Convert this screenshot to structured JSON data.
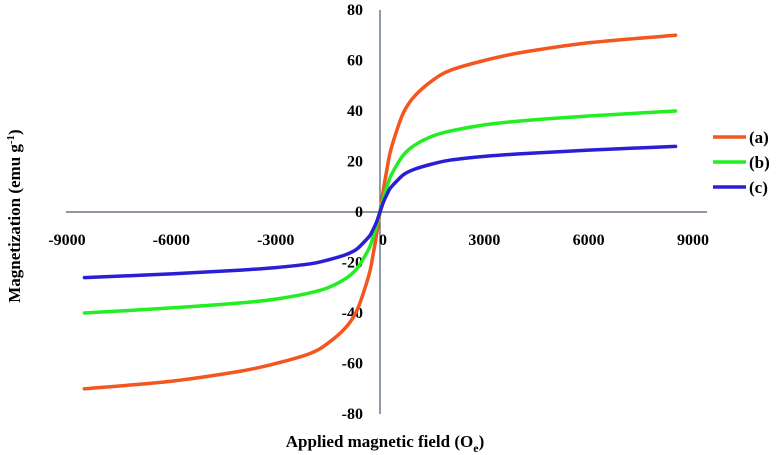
{
  "chart_data": {
    "type": "line",
    "xlabel": "Applied magnetic field (O",
    "xlabel_sub": "e",
    "xlabel_end": ")",
    "ylabel": "Magnetization (emu g",
    "ylabel_sup": "-1",
    "ylabel_end": ")",
    "xlim": [
      -9000,
      9000
    ],
    "ylim": [
      -80,
      80
    ],
    "x_ticks": [
      -9000,
      -6000,
      -3000,
      0,
      3000,
      6000,
      9000
    ],
    "x_tick_labels": [
      "-9000",
      "-6000",
      "-3000",
      "0",
      "3000",
      "6000",
      "9000"
    ],
    "y_ticks": [
      -80,
      -60,
      -40,
      -20,
      0,
      20,
      40,
      60,
      80
    ],
    "y_tick_labels": [
      "-80",
      "-60",
      "-40",
      "-20",
      "0",
      "20",
      "40",
      "60",
      "80"
    ],
    "grid": false,
    "legend_position": "right",
    "series": [
      {
        "name": "(a)",
        "color": "#f4561f",
        "x": [
          -8500,
          -6000,
          -4000,
          -3000,
          -2000,
          -1500,
          -1000,
          -700,
          -500,
          -300,
          -200,
          -100,
          0,
          100,
          200,
          300,
          500,
          700,
          1000,
          1500,
          2000,
          3000,
          4000,
          6000,
          8500
        ],
        "y": [
          -70,
          -67,
          -63,
          -60,
          -56,
          -52,
          -46,
          -40,
          -33,
          -24,
          -17,
          -9,
          0,
          9,
          17,
          24,
          33,
          40,
          46,
          52,
          56,
          60,
          63,
          67,
          70
        ]
      },
      {
        "name": "(b)",
        "color": "#22ee22",
        "x": [
          -8500,
          -6000,
          -4000,
          -3000,
          -2000,
          -1500,
          -1000,
          -700,
          -500,
          -300,
          -200,
          -100,
          0,
          100,
          200,
          300,
          500,
          700,
          1000,
          1500,
          2000,
          3000,
          4000,
          6000,
          8500
        ],
        "y": [
          -40,
          -38,
          -36,
          -34.5,
          -32,
          -30,
          -26.5,
          -23,
          -19,
          -14,
          -10,
          -5.5,
          0,
          5.5,
          10,
          14,
          19,
          23,
          26.5,
          30,
          32,
          34.5,
          36,
          38,
          40
        ]
      },
      {
        "name": "(c)",
        "color": "#2b1fd6",
        "x": [
          -8500,
          -6000,
          -4000,
          -3000,
          -2000,
          -1500,
          -1000,
          -700,
          -500,
          -300,
          -200,
          -100,
          0,
          100,
          200,
          300,
          500,
          700,
          1000,
          1500,
          2000,
          3000,
          4000,
          6000,
          8500
        ],
        "y": [
          -26,
          -24.5,
          -23,
          -22,
          -20.5,
          -19,
          -17,
          -15,
          -12.5,
          -9.5,
          -7,
          -4,
          0,
          4,
          7,
          9.5,
          12.5,
          15,
          17,
          19,
          20.5,
          22,
          23,
          24.5,
          26
        ]
      }
    ]
  }
}
